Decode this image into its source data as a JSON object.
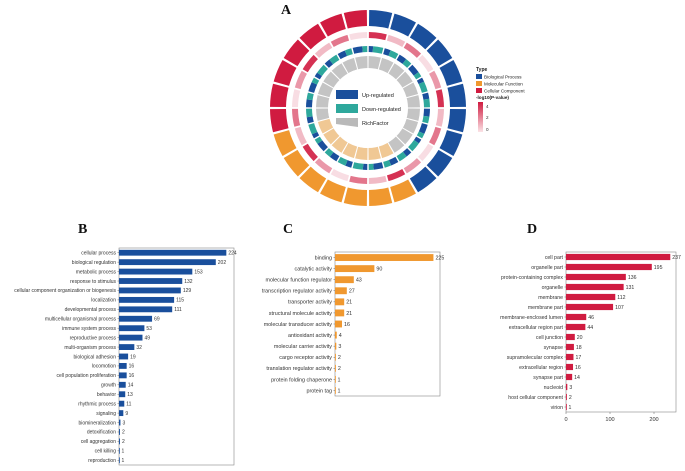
{
  "panels": {
    "a": "A",
    "b": "B",
    "c": "C",
    "d": "D"
  },
  "circos_legend": {
    "type_title": "Type",
    "types": [
      {
        "label": "Biological Process",
        "color": "#1a4f9c"
      },
      {
        "label": "Molecular Function",
        "color": "#f0982f"
      },
      {
        "label": "Cellular Component",
        "color": "#d01b40"
      }
    ],
    "scale_title": "-log10(P-value)",
    "scale_ticks": [
      "4",
      "2",
      "0"
    ],
    "center_labels": {
      "up": "Up-regulated",
      "down": "Down-regulated",
      "rich": "RichFactor"
    },
    "colors": {
      "up": "#1a4f9c",
      "down": "#2ea89c",
      "rich": "#b9b9b9"
    }
  },
  "chart_data": [
    {
      "type": "bar",
      "orientation": "horizontal",
      "panel": "B",
      "color": "#1a4f9c",
      "categories": [
        "cellular process",
        "biological regulation",
        "metabolic process",
        "response to stimulus",
        "cellular component organization or biogenesis",
        "localization",
        "developmental process",
        "multicellular organismal process",
        "immune system process",
        "reproductive process",
        "multi-organism process",
        "biological adhesion",
        "locomotion",
        "cell population proliferation",
        "growth",
        "behavior",
        "rhythmic process",
        "signaling",
        "biomineralization",
        "detoxification",
        "cell aggregation",
        "cell killing",
        "reproduction"
      ],
      "values": [
        224,
        202,
        153,
        132,
        129,
        115,
        111,
        69,
        53,
        49,
        32,
        19,
        16,
        16,
        14,
        13,
        11,
        9,
        3,
        2,
        2,
        1,
        1
      ],
      "xlim": [
        0,
        240
      ]
    },
    {
      "type": "bar",
      "orientation": "horizontal",
      "panel": "C",
      "color": "#f0982f",
      "categories": [
        "binding",
        "catalytic activity",
        "molecular function regulator",
        "transcription regulator activity",
        "transporter activity",
        "structural molecule activity",
        "molecular transducer activity",
        "antioxidant activity",
        "molecular carrier activity",
        "cargo receptor activity",
        "translation regulator activity",
        "protein folding chaperone",
        "protein tag"
      ],
      "values": [
        225,
        90,
        43,
        27,
        21,
        21,
        16,
        4,
        3,
        2,
        2,
        1,
        1
      ],
      "xlim": [
        0,
        240
      ]
    },
    {
      "type": "bar",
      "orientation": "horizontal",
      "panel": "D",
      "color": "#d01b40",
      "categories": [
        "cell part",
        "organelle part",
        "protein-containing complex",
        "organelle",
        "membrane",
        "membrane part",
        "membrane-enclosed lumen",
        "extracellular region part",
        "cell junction",
        "synapse",
        "supramolecular complex",
        "extracellular region",
        "synapse part",
        "nucleoid",
        "host cellular component",
        "virion"
      ],
      "values": [
        237,
        195,
        136,
        131,
        112,
        107,
        46,
        44,
        20,
        18,
        17,
        16,
        14,
        3,
        2,
        1
      ],
      "xlim": [
        0,
        250
      ],
      "xticks": [
        0,
        100,
        200
      ],
      "xtick_labels": [
        "0",
        "100",
        "200"
      ]
    }
  ]
}
